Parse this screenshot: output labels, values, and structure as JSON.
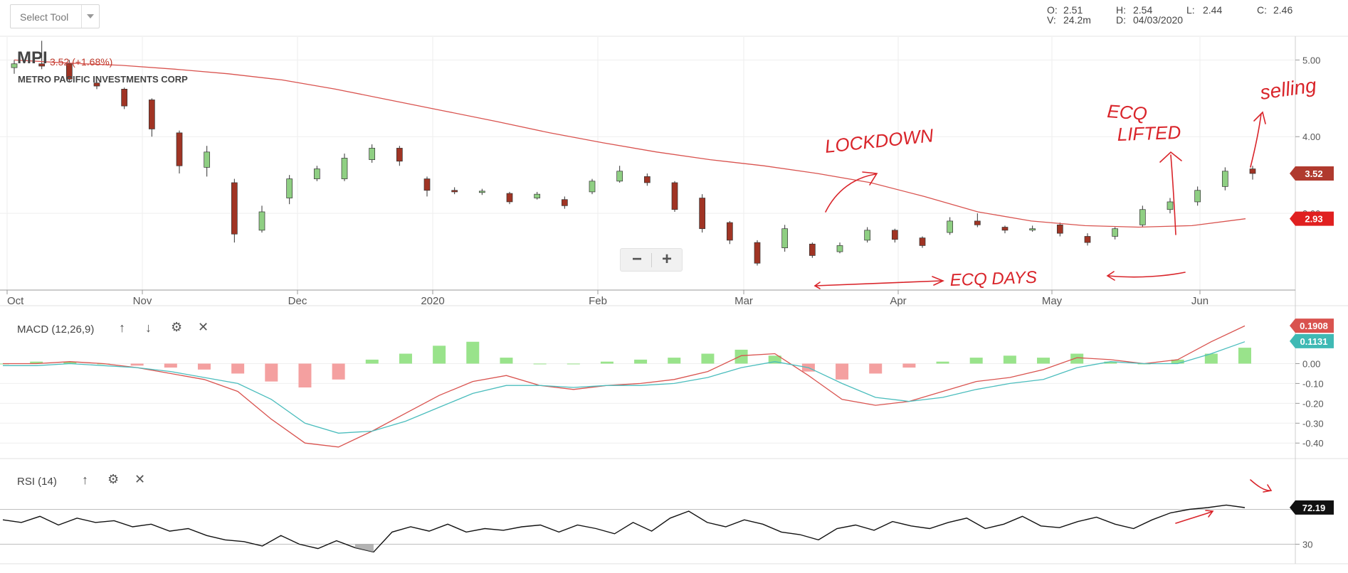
{
  "toolbar": {
    "select_tool_label": "Select Tool"
  },
  "ohlc": {
    "o_label": "O:",
    "o_value": "2.51",
    "h_label": "H:",
    "h_value": "2.54",
    "l_label": "L:",
    "l_value": "2.44",
    "c_label": "C:",
    "c_value": "2.46",
    "v_label": "V:",
    "v_value": "24.2m",
    "d_label": "D:",
    "d_value": "04/03/2020"
  },
  "symbol": {
    "ticker": "MPI",
    "change": "3.52 (+1.68%)",
    "name": "METRO PACIFIC INVESTMENTS CORP"
  },
  "indicators": {
    "macd_label": "MACD (12,26,9)",
    "rsi_label": "RSI (14)"
  },
  "colors": {
    "up": "#8fcf83",
    "down": "#a03424",
    "ma": "#d9534f",
    "macd_line": "#d9534f",
    "signal_line": "#4bbdbd",
    "hist_pos": "#99e38b",
    "hist_neg": "#f4a0a0",
    "annotation": "#d9242a"
  },
  "chart_data": [
    {
      "type": "candlestick",
      "x_labels": [
        "Oct",
        "Nov",
        "Dec",
        "2020",
        "Feb",
        "Mar",
        "Apr",
        "May",
        "Jun"
      ],
      "y_ticks": [
        "5.00",
        "4.00",
        "3.00"
      ],
      "ylim": [
        2.0,
        5.3
      ],
      "grid": true,
      "current_price_tag": "3.52",
      "ma_tag": "2.93",
      "ohlc": [
        [
          "Oct",
          4.9,
          5.0,
          4.82,
          4.95
        ],
        [
          "Oct",
          4.95,
          5.25,
          4.88,
          4.92
        ],
        [
          "Nov",
          4.95,
          5.0,
          4.72,
          4.75
        ],
        [
          "Nov",
          4.7,
          4.74,
          4.62,
          4.66
        ],
        [
          "Nov",
          4.62,
          4.64,
          4.36,
          4.4
        ],
        [
          "Dec",
          4.48,
          4.5,
          4.0,
          4.1
        ],
        [
          "Dec",
          4.05,
          4.08,
          3.52,
          3.62
        ],
        [
          "Dec",
          3.6,
          3.88,
          3.48,
          3.8
        ],
        [
          "Dec",
          3.4,
          3.45,
          2.62,
          2.73
        ],
        [
          "Dec",
          2.78,
          3.1,
          2.75,
          3.02
        ],
        [
          "Dec",
          3.2,
          3.5,
          3.12,
          3.45
        ],
        [
          "2020",
          3.45,
          3.62,
          3.42,
          3.58
        ],
        [
          "2020",
          3.45,
          3.78,
          3.42,
          3.72
        ],
        [
          "2020",
          3.7,
          3.9,
          3.66,
          3.85
        ],
        [
          "2020",
          3.85,
          3.88,
          3.62,
          3.68
        ],
        [
          "2020",
          3.45,
          3.48,
          3.22,
          3.3
        ],
        [
          "Feb",
          3.3,
          3.34,
          3.25,
          3.28
        ],
        [
          "Feb",
          3.28,
          3.32,
          3.24,
          3.29
        ],
        [
          "Feb",
          3.26,
          3.28,
          3.12,
          3.15
        ],
        [
          "Feb",
          3.2,
          3.28,
          3.18,
          3.25
        ],
        [
          "Feb",
          3.18,
          3.22,
          3.06,
          3.1
        ],
        [
          "Mar",
          3.28,
          3.45,
          3.25,
          3.42
        ],
        [
          "Mar",
          3.42,
          3.62,
          3.4,
          3.55
        ],
        [
          "Mar",
          3.48,
          3.52,
          3.36,
          3.4
        ],
        [
          "Mar",
          3.4,
          3.42,
          3.02,
          3.05
        ],
        [
          "Mar",
          3.2,
          3.25,
          2.75,
          2.8
        ],
        [
          "Mar",
          2.88,
          2.9,
          2.6,
          2.65
        ],
        [
          "Mar",
          2.62,
          2.65,
          2.32,
          2.35
        ],
        [
          "Apr",
          2.55,
          2.85,
          2.5,
          2.8
        ],
        [
          "Apr",
          2.6,
          2.62,
          2.42,
          2.45
        ],
        [
          "Apr",
          2.5,
          2.62,
          2.48,
          2.58
        ],
        [
          "Apr",
          2.65,
          2.82,
          2.62,
          2.78
        ],
        [
          "Apr",
          2.78,
          2.8,
          2.62,
          2.66
        ],
        [
          "Apr",
          2.68,
          2.7,
          2.55,
          2.58
        ],
        [
          "May",
          2.75,
          2.95,
          2.72,
          2.9
        ],
        [
          "May",
          2.9,
          3.0,
          2.82,
          2.85
        ],
        [
          "May",
          2.82,
          2.84,
          2.74,
          2.78
        ],
        [
          "May",
          2.8,
          2.84,
          2.76,
          2.8
        ],
        [
          "May",
          2.85,
          2.88,
          2.7,
          2.74
        ],
        [
          "May",
          2.7,
          2.74,
          2.58,
          2.62
        ],
        [
          "Jun",
          2.7,
          2.82,
          2.66,
          2.8
        ],
        [
          "Jun",
          2.85,
          3.1,
          2.82,
          3.05
        ],
        [
          "Jun",
          3.05,
          3.2,
          3.0,
          3.15
        ],
        [
          "Jun",
          3.15,
          3.35,
          3.1,
          3.3
        ],
        [
          "Jun",
          3.35,
          3.6,
          3.3,
          3.55
        ],
        [
          "Jun",
          3.58,
          3.62,
          3.44,
          3.52
        ]
      ],
      "moving_average": [
        5.0,
        4.96,
        4.93,
        4.88,
        4.82,
        4.74,
        4.62,
        4.48,
        4.34,
        4.2,
        4.05,
        3.92,
        3.8,
        3.7,
        3.62,
        3.52,
        3.4,
        3.22,
        3.02,
        2.9,
        2.84,
        2.82,
        2.84,
        2.93
      ]
    },
    {
      "type": "macd",
      "params": "12,26,9",
      "y_ticks": [
        "0.00",
        "-0.10",
        "-0.20",
        "-0.30",
        "-0.40"
      ],
      "ylim": [
        -0.46,
        0.22
      ],
      "macd_tag": "0.1908",
      "signal_tag": "0.1131",
      "macd": [
        0.0,
        0.0,
        0.01,
        0.0,
        -0.02,
        -0.05,
        -0.08,
        -0.14,
        -0.28,
        -0.4,
        -0.42,
        -0.34,
        -0.25,
        -0.16,
        -0.09,
        -0.06,
        -0.11,
        -0.13,
        -0.11,
        -0.1,
        -0.08,
        -0.04,
        0.04,
        0.05,
        -0.06,
        -0.18,
        -0.21,
        -0.19,
        -0.14,
        -0.09,
        -0.07,
        -0.03,
        0.03,
        0.02,
        0.0,
        0.02,
        0.11,
        0.19
      ],
      "signal": [
        -0.01,
        -0.01,
        0.0,
        -0.01,
        -0.02,
        -0.04,
        -0.07,
        -0.1,
        -0.18,
        -0.3,
        -0.35,
        -0.34,
        -0.29,
        -0.22,
        -0.15,
        -0.11,
        -0.11,
        -0.12,
        -0.11,
        -0.11,
        -0.1,
        -0.07,
        -0.02,
        0.01,
        -0.02,
        -0.1,
        -0.17,
        -0.19,
        -0.17,
        -0.13,
        -0.1,
        -0.08,
        -0.02,
        0.01,
        0.0,
        0.0,
        0.05,
        0.11
      ],
      "histogram": [
        0.0,
        0.01,
        0.01,
        0.0,
        -0.01,
        -0.02,
        -0.03,
        -0.05,
        -0.09,
        -0.12,
        -0.08,
        0.02,
        0.05,
        0.09,
        0.11,
        0.03,
        0.0,
        0.0,
        0.01,
        0.02,
        0.03,
        0.05,
        0.07,
        0.04,
        -0.04,
        -0.08,
        -0.05,
        -0.02,
        0.01,
        0.03,
        0.04,
        0.03,
        0.05,
        0.01,
        0.0,
        0.02,
        0.05,
        0.08
      ]
    },
    {
      "type": "rsi",
      "params": "14",
      "y_ticks": [
        "30"
      ],
      "ylim": [
        10,
        90
      ],
      "rsi_tag": "72.19",
      "overbought": 70,
      "oversold": 30,
      "values": [
        58,
        55,
        62,
        52,
        60,
        55,
        57,
        50,
        53,
        45,
        48,
        40,
        35,
        33,
        28,
        40,
        30,
        25,
        34,
        26,
        21,
        44,
        50,
        45,
        53,
        44,
        48,
        46,
        50,
        52,
        44,
        52,
        48,
        42,
        55,
        45,
        60,
        68,
        55,
        50,
        58,
        53,
        44,
        41,
        35,
        48,
        52,
        46,
        56,
        51,
        48,
        55,
        60,
        48,
        53,
        62,
        51,
        49,
        56,
        61,
        53,
        48,
        58,
        66,
        70,
        72,
        75,
        72
      ]
    }
  ],
  "annotations": {
    "lockdown": "LOCKDOWN",
    "ecq_lifted_1": "ECQ",
    "ecq_lifted_2": "LIFTED",
    "selling": "selling",
    "ecq_days": "ECQ DAYS"
  }
}
